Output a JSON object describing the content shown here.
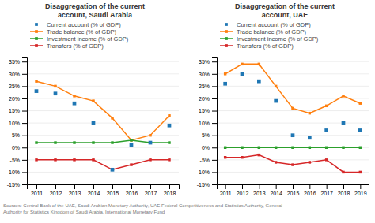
{
  "chart_data": [
    {
      "type": "line",
      "title": "Disaggregation of the current\naccount, Saudi Arabia",
      "x": [
        2011,
        2012,
        2013,
        2014,
        2015,
        2016,
        2017,
        2018
      ],
      "xlim": [
        2010.5,
        2018.5
      ],
      "xticks": [
        2011,
        2012,
        2013,
        2014,
        2015,
        2016,
        2017,
        2018
      ],
      "ylim": [
        -15,
        37
      ],
      "yticks": [
        {
          "value": -15,
          "label": "-15%"
        },
        {
          "value": -10,
          "label": "-10%"
        },
        {
          "value": -5,
          "label": "-5%"
        },
        {
          "value": 0,
          "label": "0%"
        },
        {
          "value": 5,
          "label": "5%"
        },
        {
          "value": 10,
          "label": "10%"
        },
        {
          "value": 15,
          "label": "15%"
        },
        {
          "value": 20,
          "label": "20%"
        },
        {
          "value": 25,
          "label": "25%"
        },
        {
          "value": 30,
          "label": "30%"
        },
        {
          "value": 35,
          "label": "35%"
        }
      ],
      "grid": true,
      "legend": "upper left",
      "series": [
        {
          "name": "Current account (% of GDP)",
          "type": "scatter",
          "marker": "square",
          "values": [
            23,
            22,
            18,
            10,
            -9,
            1,
            2,
            9
          ]
        },
        {
          "name": "Trade balance (% of GDP)",
          "type": "line",
          "marker": "square",
          "values": [
            27,
            25,
            21,
            19,
            12,
            3,
            5,
            13
          ]
        },
        {
          "name": "Investment income (% of GDP)",
          "type": "line",
          "marker": "square",
          "values": [
            2,
            2,
            2,
            2,
            2,
            3,
            2,
            2
          ]
        },
        {
          "name": "Transfers (% of GDP)",
          "type": "line",
          "marker": "square",
          "values": [
            -5,
            -5,
            -5,
            -5,
            -9,
            -7,
            -5,
            -5
          ]
        }
      ]
    },
    {
      "type": "line",
      "title": "Disaggregation of the current\naccount, UAE",
      "x": [
        2011,
        2012,
        2013,
        2014,
        2015,
        2016,
        2017,
        2018,
        2019
      ],
      "xlim": [
        2010.5,
        2019.5
      ],
      "xticks": [
        2011,
        2012,
        2013,
        2014,
        2015,
        2016,
        2017,
        2018,
        2019
      ],
      "ylim": [
        -15,
        37
      ],
      "yticks": [
        {
          "value": -15,
          "label": "-15%"
        },
        {
          "value": -10,
          "label": "-10%"
        },
        {
          "value": -5,
          "label": "-5%"
        },
        {
          "value": 0,
          "label": "0%"
        },
        {
          "value": 5,
          "label": "5%"
        },
        {
          "value": 10,
          "label": "10%"
        },
        {
          "value": 15,
          "label": "15%"
        },
        {
          "value": 20,
          "label": "20%"
        },
        {
          "value": 25,
          "label": "25%"
        },
        {
          "value": 30,
          "label": "30%"
        },
        {
          "value": 35,
          "label": "35%"
        }
      ],
      "grid": true,
      "legend": "upper left",
      "series": [
        {
          "name": "Current account (% of GDP)",
          "type": "scatter",
          "marker": "square",
          "values": [
            26,
            30,
            27,
            19,
            5,
            4,
            7,
            10,
            7
          ]
        },
        {
          "name": "Trade balance (% of GDP)",
          "type": "line",
          "marker": "square",
          "values": [
            30,
            34,
            34,
            25,
            16,
            14,
            17,
            21,
            18
          ]
        },
        {
          "name": "Investment income (% of GDP)",
          "type": "line",
          "marker": "square",
          "values": [
            0,
            0,
            0,
            0,
            0,
            0,
            0,
            0,
            0
          ]
        },
        {
          "name": "Transfers (% of GDP)",
          "type": "line",
          "marker": "square",
          "values": [
            -4,
            -4,
            -3,
            -6,
            -7,
            -6,
            -5,
            -10,
            -10
          ]
        }
      ]
    }
  ],
  "source": "Sources: Central Bank of the UAE, Saudi Arabian Monetary Authority, UAE Federal Competitiveness and Statistics Authority, General\nAuthority for Statistics Kingdom of Saudi Arabia, International Monetary Fund"
}
